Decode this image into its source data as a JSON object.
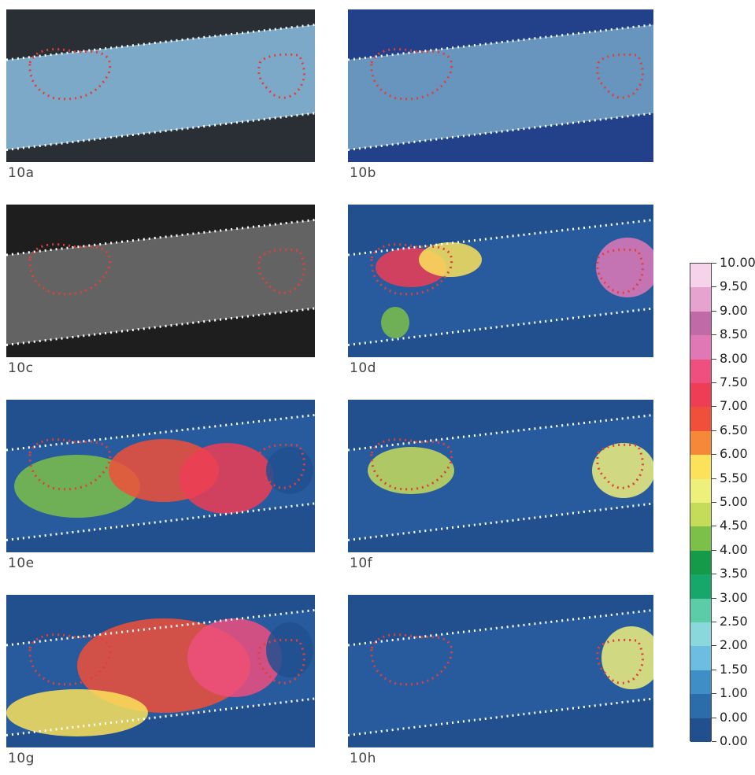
{
  "panels": [
    {
      "id": "a",
      "label": "10a",
      "style": "photo-blue"
    },
    {
      "id": "b",
      "label": "10b",
      "style": "photo-blue-dim"
    },
    {
      "id": "c",
      "label": "10c",
      "style": "grayscale"
    },
    {
      "id": "d",
      "label": "10d",
      "style": "heatmap"
    },
    {
      "id": "e",
      "label": "10e",
      "style": "heatmap"
    },
    {
      "id": "f",
      "label": "10f",
      "style": "heatmap"
    },
    {
      "id": "g",
      "label": "10g",
      "style": "heatmap"
    },
    {
      "id": "h",
      "label": "10h",
      "style": "heatmap"
    }
  ],
  "colorbar": {
    "ticks": [
      "10.00",
      "9.50",
      "9.00",
      "8.50",
      "8.00",
      "7.50",
      "7.00",
      "6.50",
      "6.00",
      "5.50",
      "5.00",
      "4.50",
      "4.00",
      "3.50",
      "3.00",
      "2.50",
      "2.00",
      "1.50",
      "1.00",
      "0.00",
      "0.00"
    ],
    "colors": [
      "#f6d3ea",
      "#e6a3cf",
      "#c06aa8",
      "#e078b6",
      "#ef4f7e",
      "#ef3d55",
      "#f0503a",
      "#f6883a",
      "#fbe25a",
      "#eef07c",
      "#c5dc5a",
      "#7cc04a",
      "#149a48",
      "#16a86a",
      "#5ccca8",
      "#8ad8dc",
      "#6cbde0",
      "#3f8fc6",
      "#2b6cab",
      "#22508f"
    ],
    "accent_overlay": "#e0403a",
    "boundary_color": "#ffffff"
  }
}
